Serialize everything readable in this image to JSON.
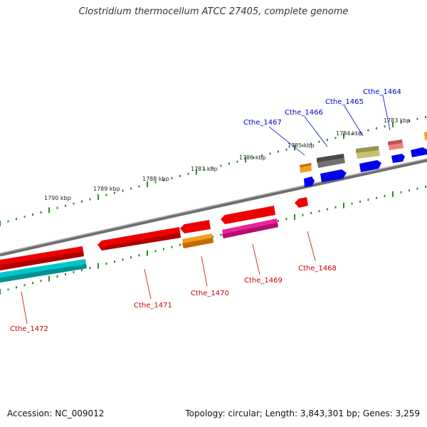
{
  "title": "Clostridium thermocellum ATCC 27405, complete genome",
  "accession": "Accession: NC_009012",
  "footer_info": "Topology: circular; Length: 3,843,301 bp; Genes: 3,259",
  "kbp_labels": [
    "1790 kbp",
    "1789 kbp",
    "1788 kbp",
    "1787 kbp",
    "1786 kbp",
    "1785 kbp",
    "1784 kbp",
    "1783 kbp"
  ],
  "colors": {
    "backbone": "#808080",
    "tick_green": "#2e8b2e",
    "label_forward": "#0000cc",
    "label_reverse": "#cc0000"
  },
  "forward_labels": [
    "Cthe_1467",
    "Cthe_1466",
    "Cthe_1465",
    "Cthe_1464"
  ],
  "reverse_labels": [
    "Cthe_1472",
    "Cthe_1471",
    "Cthe_1470",
    "Cthe_1469",
    "Cthe_1468"
  ]
}
